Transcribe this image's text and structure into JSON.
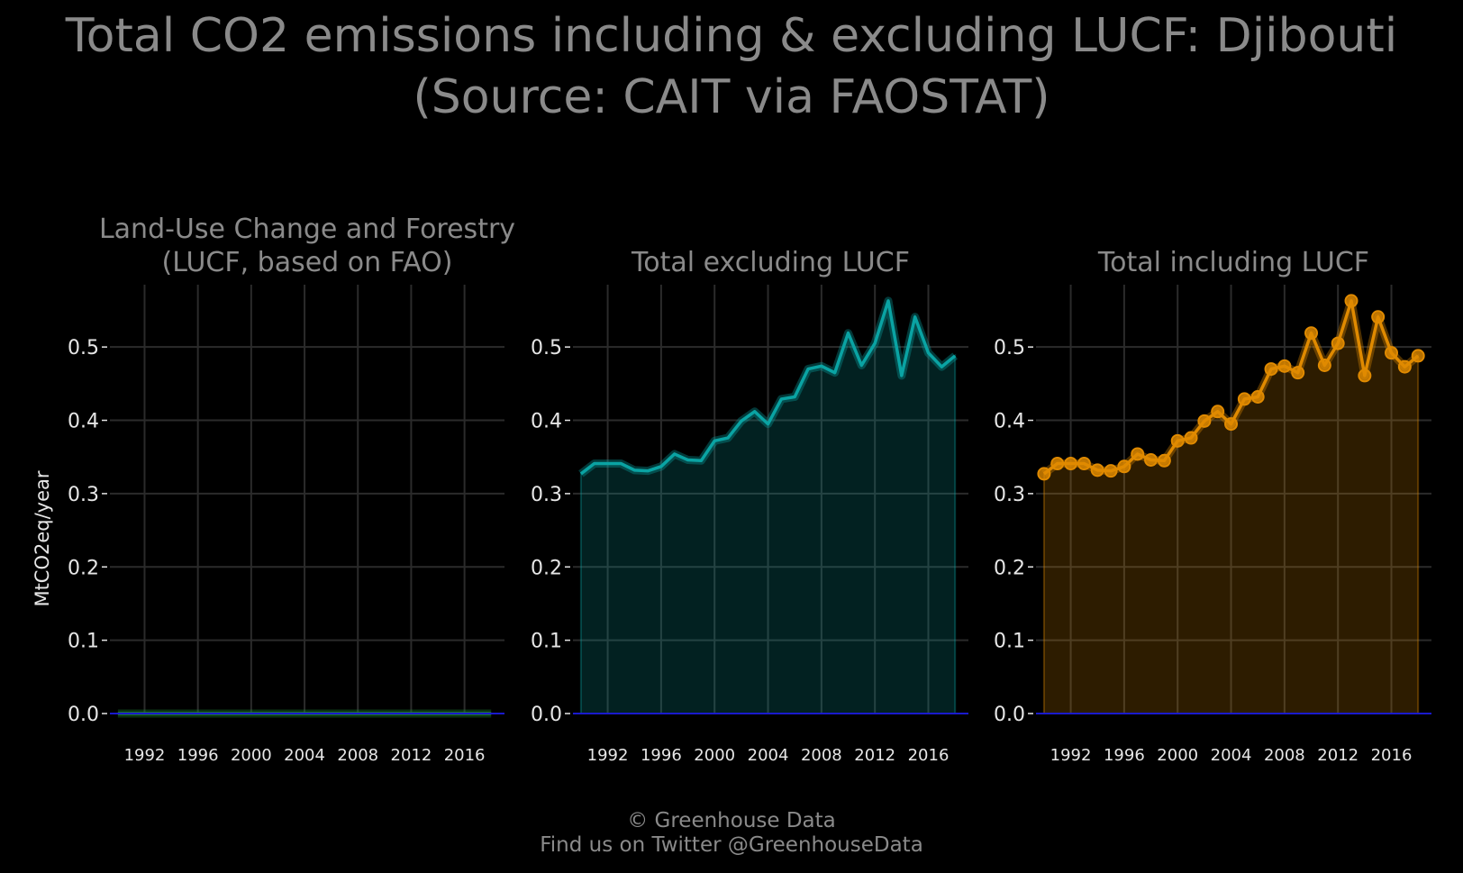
{
  "title": {
    "line1": "Total CO2 emissions including & excluding LUCF: Djibouti",
    "line2": "(Source: CAIT via FAOSTAT)"
  },
  "ylabel": "MtCO2eq/year",
  "credits": {
    "line1": "© Greenhouse Data",
    "line2": "Find us on Twitter @GreenhouseData"
  },
  "colors": {
    "background": "#000000",
    "grid": "#2b2b2b",
    "text": "#8a8a8a",
    "tick_text": "#e6e6e6",
    "zero_line": "#1a1acc",
    "lucf": "#1f8a3a",
    "excluding": "#0aa3a3",
    "including": "#e08a00"
  },
  "chart_data": [
    {
      "type": "area",
      "title_lines": [
        "Land-Use Change and Forestry",
        "(LUCF, based on FAO)"
      ],
      "color_key": "lucf",
      "markers": false,
      "x": [
        1990,
        1991,
        1992,
        1993,
        1994,
        1995,
        1996,
        1997,
        1998,
        1999,
        2000,
        2001,
        2002,
        2003,
        2004,
        2005,
        2006,
        2007,
        2008,
        2009,
        2010,
        2011,
        2012,
        2013,
        2014,
        2015,
        2016,
        2017,
        2018
      ],
      "y": [
        0,
        0,
        0,
        0,
        0,
        0,
        0,
        0,
        0,
        0,
        0,
        0,
        0,
        0,
        0,
        0,
        0,
        0,
        0,
        0,
        0,
        0,
        0,
        0,
        0,
        0,
        0,
        0,
        0
      ],
      "xticks": [
        1992,
        1996,
        2000,
        2004,
        2008,
        2012,
        2016
      ],
      "yticks": [
        "0.0",
        "0.1",
        "0.2",
        "0.3",
        "0.4",
        "0.5"
      ],
      "ylim": [
        0,
        0.585
      ],
      "grid": true
    },
    {
      "type": "area",
      "title_lines": [
        "Total excluding LUCF"
      ],
      "color_key": "excluding",
      "markers": false,
      "x": [
        1990,
        1991,
        1992,
        1993,
        1994,
        1995,
        1996,
        1997,
        1998,
        1999,
        2000,
        2001,
        2002,
        2003,
        2004,
        2005,
        2006,
        2007,
        2008,
        2009,
        2010,
        2011,
        2012,
        2013,
        2014,
        2015,
        2016,
        2017,
        2018
      ],
      "y": [
        0.327,
        0.341,
        0.341,
        0.341,
        0.332,
        0.331,
        0.337,
        0.354,
        0.346,
        0.345,
        0.372,
        0.376,
        0.399,
        0.412,
        0.395,
        0.429,
        0.432,
        0.47,
        0.474,
        0.465,
        0.519,
        0.475,
        0.505,
        0.563,
        0.461,
        0.541,
        0.492,
        0.473,
        0.488
      ],
      "xticks": [
        1992,
        1996,
        2000,
        2004,
        2008,
        2012,
        2016
      ],
      "yticks": [
        "0.0",
        "0.1",
        "0.2",
        "0.3",
        "0.4",
        "0.5"
      ],
      "ylim": [
        0,
        0.585
      ],
      "grid": true
    },
    {
      "type": "area",
      "title_lines": [
        "Total including LUCF"
      ],
      "color_key": "including",
      "markers": true,
      "x": [
        1990,
        1991,
        1992,
        1993,
        1994,
        1995,
        1996,
        1997,
        1998,
        1999,
        2000,
        2001,
        2002,
        2003,
        2004,
        2005,
        2006,
        2007,
        2008,
        2009,
        2010,
        2011,
        2012,
        2013,
        2014,
        2015,
        2016,
        2017,
        2018
      ],
      "y": [
        0.327,
        0.341,
        0.341,
        0.341,
        0.332,
        0.331,
        0.337,
        0.354,
        0.346,
        0.345,
        0.372,
        0.376,
        0.399,
        0.412,
        0.395,
        0.429,
        0.432,
        0.47,
        0.474,
        0.465,
        0.519,
        0.475,
        0.505,
        0.563,
        0.461,
        0.541,
        0.492,
        0.473,
        0.488
      ],
      "xticks": [
        1992,
        1996,
        2000,
        2004,
        2008,
        2012,
        2016
      ],
      "yticks": [
        "0.0",
        "0.1",
        "0.2",
        "0.3",
        "0.4",
        "0.5"
      ],
      "ylim": [
        0,
        0.585
      ],
      "grid": true
    }
  ]
}
